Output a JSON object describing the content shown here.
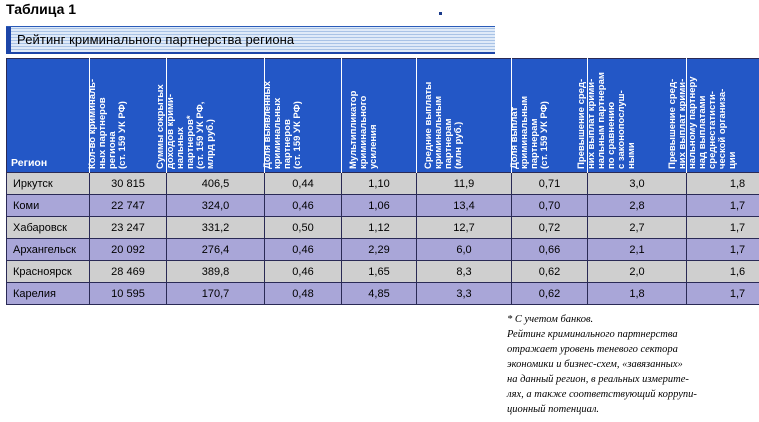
{
  "table_label": "Таблица 1",
  "title": "Рейтинг криминального партнерства региона",
  "columns": [
    "Регион",
    "Кол-во криминаль-\nных партнеров\nрегиона\n(ст. 159 УК РФ)",
    "Суммы сокрытых\nдоходов крими-\nнальных\nпартнеров*\n(ст. 159 УК РФ,\nмлрд руб.)",
    "Доля выявленных\nкриминальных\nпартнеров\n(ст. 159 УК РФ)",
    "Мультипликатор\nкриминального\nусиления",
    "Средние выплаты\nкриминальным\nпартнерам\n(млн руб.)",
    "Доля выплат\nкриминальным\nпартнерам\n(ст. 159 УК РФ)",
    "Превышение сред-\nних выплат крими-\nнальным партнерам\nпо сравнению\nс законопослуш-\nными",
    "Превышение сред-\nних выплат крими-\nнальному партнеру\nнад выплатами\nсреднестатисти-\nческой организа-\nции"
  ],
  "rows": [
    [
      "Иркутск",
      "30 815",
      "406,5",
      "0,44",
      "1,10",
      "11,9",
      "0,71",
      "3,0",
      "1,8"
    ],
    [
      "Коми",
      "22 747",
      "324,0",
      "0,46",
      "1,06",
      "13,4",
      "0,70",
      "2,8",
      "1,7"
    ],
    [
      "Хабаровск",
      "23 247",
      "331,2",
      "0,50",
      "1,12",
      "12,7",
      "0,72",
      "2,7",
      "1,7"
    ],
    [
      "Архангельск",
      "20 092",
      "276,4",
      "0,46",
      "2,29",
      "6,0",
      "0,66",
      "2,1",
      "1,7"
    ],
    [
      "Красноярск",
      "28 469",
      "389,8",
      "0,46",
      "1,65",
      "8,3",
      "0,62",
      "2,0",
      "1,6"
    ],
    [
      "Карелия",
      "10 595",
      "170,7",
      "0,48",
      "4,85",
      "3,3",
      "0,62",
      "1,8",
      "1,7"
    ]
  ],
  "notes": [
    "* С учетом банков.",
    " Рейтинг криминального партнерства",
    "отражает уровень теневого сектора",
    "экономики и бизнес-схем, «завязанных»",
    "на данный регион, в реальных измерите-",
    "лях, а также соответствующий коррупи-",
    "ционный потенциал."
  ],
  "colors": {
    "header_blue": "#2357c6",
    "row_gray": "#cfcfcf",
    "row_lavender": "#a9a6d8"
  }
}
